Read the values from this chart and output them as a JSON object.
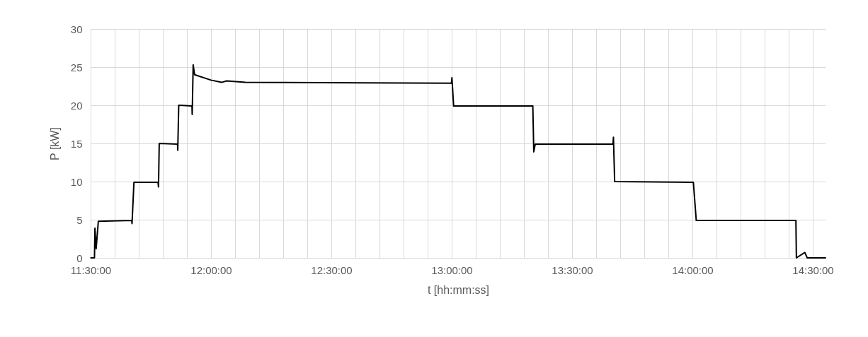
{
  "chart_data": {
    "type": "line",
    "xlabel": "t [hh:mm:ss]",
    "ylabel": "P [kW]",
    "x": [
      11.501,
      11.516,
      11.518,
      11.523,
      11.532,
      11.671,
      11.672,
      11.68,
      11.78,
      11.782,
      11.785,
      11.861,
      11.862,
      11.866,
      11.921,
      11.922,
      11.926,
      11.932,
      12.0,
      12.044,
      12.065,
      12.143,
      12.999,
      13.001,
      13.008,
      13.337,
      13.341,
      13.347,
      13.67,
      13.672,
      13.677,
      14.004,
      14.016,
      14.43,
      14.432,
      14.467,
      14.477,
      14.553
    ],
    "series": [
      {
        "color": "#000000",
        "values": [
          0,
          0,
          3.9,
          1.2,
          4.8,
          4.9,
          4.5,
          9.9,
          9.9,
          9.3,
          15.0,
          14.9,
          14.1,
          20.0,
          19.9,
          18.8,
          25.3,
          24.0,
          23.3,
          23.0,
          23.2,
          23.0,
          22.9,
          23.6,
          19.9,
          19.9,
          13.9,
          14.9,
          14.9,
          15.8,
          10.0,
          9.9,
          4.9,
          4.9,
          0,
          0.7,
          0,
          0
        ]
      }
    ],
    "xlim": [
      11.5,
      14.553
    ],
    "xticks": [
      {
        "value": 11.5,
        "label": "11:30:00"
      },
      {
        "value": 11.6,
        "label": null
      },
      {
        "value": 11.7,
        "label": null
      },
      {
        "value": 11.8,
        "label": null
      },
      {
        "value": 11.9,
        "label": null
      },
      {
        "value": 12,
        "label": "12:00:00"
      },
      {
        "value": 12.1,
        "label": null
      },
      {
        "value": 12.2,
        "label": null
      },
      {
        "value": 12.3,
        "label": null
      },
      {
        "value": 12.4,
        "label": null
      },
      {
        "value": 12.5,
        "label": "12:30:00"
      },
      {
        "value": 12.6,
        "label": null
      },
      {
        "value": 12.7,
        "label": null
      },
      {
        "value": 12.8,
        "label": null
      },
      {
        "value": 12.9,
        "label": null
      },
      {
        "value": 13,
        "label": "13:00:00"
      },
      {
        "value": 13.1,
        "label": null
      },
      {
        "value": 13.2,
        "label": null
      },
      {
        "value": 13.3,
        "label": null
      },
      {
        "value": 13.4,
        "label": null
      },
      {
        "value": 13.5,
        "label": "13:30:00"
      },
      {
        "value": 13.6,
        "label": null
      },
      {
        "value": 13.7,
        "label": null
      },
      {
        "value": 13.8,
        "label": null
      },
      {
        "value": 13.9,
        "label": null
      },
      {
        "value": 14,
        "label": "14:00:00"
      },
      {
        "value": 14.1,
        "label": null
      },
      {
        "value": 14.2,
        "label": null
      },
      {
        "value": 14.3,
        "label": null
      },
      {
        "value": 14.4,
        "label": null
      },
      {
        "value": 14.5,
        "label": "14:30:00"
      }
    ],
    "ylim": [
      0,
      30
    ],
    "yticks": [
      0,
      5,
      10,
      15,
      20,
      25,
      30
    ],
    "grid": true,
    "line_style": "solid"
  }
}
